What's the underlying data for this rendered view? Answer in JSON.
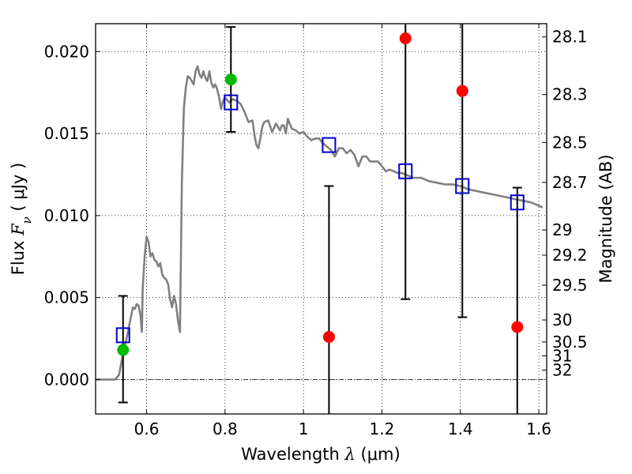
{
  "chart_data": {
    "type": "scatter",
    "title": "",
    "xlabel": {
      "prefix": "Wavelength  ",
      "symbol": "λ",
      "unit": " (μm)"
    },
    "ylabel": {
      "prefix": "Flux  ",
      "symbol": "F",
      "subscript": "ν",
      "unit": "  ( μJy )"
    },
    "y2label": "Magnitude (AB)",
    "xlim": [
      0.47,
      1.62
    ],
    "ylim": [
      -0.0021,
      0.0217
    ],
    "grid": true,
    "x_ticks": [
      {
        "v": 0.6,
        "label": "0.6"
      },
      {
        "v": 0.8,
        "label": "0.8"
      },
      {
        "v": 1.0,
        "label": "1"
      },
      {
        "v": 1.2,
        "label": "1.2"
      },
      {
        "v": 1.4,
        "label": "1.4"
      },
      {
        "v": 1.6,
        "label": "1.6"
      }
    ],
    "y_ticks": [
      {
        "v": 0.0,
        "label": "0.000"
      },
      {
        "v": 0.005,
        "label": "0.005"
      },
      {
        "v": 0.01,
        "label": "0.010"
      },
      {
        "v": 0.015,
        "label": "0.015"
      },
      {
        "v": 0.02,
        "label": "0.020"
      }
    ],
    "mag_ticks": [
      {
        "v": 28.1,
        "label": "28.1"
      },
      {
        "v": 28.3,
        "label": "28.3"
      },
      {
        "v": 28.5,
        "label": "28.5"
      },
      {
        "v": 28.7,
        "label": "28.7"
      },
      {
        "v": 29,
        "label": "29"
      },
      {
        "v": 29.2,
        "label": "29.2"
      },
      {
        "v": 29.5,
        "label": "29.5"
      },
      {
        "v": 30,
        "label": "30"
      },
      {
        "v": 30.5,
        "label": "30.5"
      },
      {
        "v": 31,
        "label": "31"
      },
      {
        "v": 32,
        "label": "32"
      }
    ],
    "zero_line": 0.0,
    "series": [
      {
        "kind": "line",
        "color": "#808080",
        "points": [
          [
            0.47,
            0.0
          ],
          [
            0.5,
            0.0
          ],
          [
            0.52,
            0.0
          ],
          [
            0.53,
            0.0003
          ],
          [
            0.54,
            0.0016
          ],
          [
            0.55,
            0.0026
          ],
          [
            0.56,
            0.0038
          ],
          [
            0.565,
            0.0044
          ],
          [
            0.57,
            0.0043
          ],
          [
            0.575,
            0.0046
          ],
          [
            0.58,
            0.0045
          ],
          [
            0.585,
            0.0038
          ],
          [
            0.588,
            0.0029
          ],
          [
            0.59,
            0.0055
          ],
          [
            0.595,
            0.0075
          ],
          [
            0.6,
            0.0087
          ],
          [
            0.605,
            0.0084
          ],
          [
            0.61,
            0.0075
          ],
          [
            0.615,
            0.0077
          ],
          [
            0.62,
            0.0073
          ],
          [
            0.625,
            0.0072
          ],
          [
            0.63,
            0.0069
          ],
          [
            0.635,
            0.0071
          ],
          [
            0.64,
            0.0064
          ],
          [
            0.645,
            0.0062
          ],
          [
            0.65,
            0.0061
          ],
          [
            0.655,
            0.0058
          ],
          [
            0.66,
            0.0049
          ],
          [
            0.665,
            0.0044
          ],
          [
            0.67,
            0.0051
          ],
          [
            0.675,
            0.0046
          ],
          [
            0.68,
            0.0036
          ],
          [
            0.685,
            0.0029
          ],
          [
            0.69,
            0.012
          ],
          [
            0.695,
            0.0165
          ],
          [
            0.7,
            0.0178
          ],
          [
            0.705,
            0.0185
          ],
          [
            0.71,
            0.0184
          ],
          [
            0.715,
            0.0182
          ],
          [
            0.72,
            0.018
          ],
          [
            0.725,
            0.0188
          ],
          [
            0.73,
            0.0191
          ],
          [
            0.735,
            0.0186
          ],
          [
            0.74,
            0.0184
          ],
          [
            0.745,
            0.0188
          ],
          [
            0.75,
            0.0184
          ],
          [
            0.755,
            0.0182
          ],
          [
            0.76,
            0.0188
          ],
          [
            0.765,
            0.0181
          ],
          [
            0.77,
            0.0178
          ],
          [
            0.775,
            0.018
          ],
          [
            0.78,
            0.0177
          ],
          [
            0.785,
            0.0172
          ],
          [
            0.79,
            0.0165
          ],
          [
            0.795,
            0.017
          ],
          [
            0.8,
            0.0172
          ],
          [
            0.81,
            0.0169
          ],
          [
            0.82,
            0.0171
          ],
          [
            0.83,
            0.017
          ],
          [
            0.84,
            0.0168
          ],
          [
            0.85,
            0.0163
          ],
          [
            0.86,
            0.0157
          ],
          [
            0.87,
            0.0158
          ],
          [
            0.875,
            0.0149
          ],
          [
            0.88,
            0.0143
          ],
          [
            0.885,
            0.0141
          ],
          [
            0.89,
            0.0147
          ],
          [
            0.895,
            0.0154
          ],
          [
            0.9,
            0.0157
          ],
          [
            0.91,
            0.0158
          ],
          [
            0.92,
            0.0151
          ],
          [
            0.93,
            0.0156
          ],
          [
            0.94,
            0.0152
          ],
          [
            0.945,
            0.0155
          ],
          [
            0.95,
            0.0155
          ],
          [
            0.955,
            0.015
          ],
          [
            0.96,
            0.0159
          ],
          [
            0.97,
            0.0153
          ],
          [
            0.98,
            0.0152
          ],
          [
            0.99,
            0.015
          ],
          [
            1.0,
            0.0151
          ],
          [
            1.01,
            0.0148
          ],
          [
            1.02,
            0.0146
          ],
          [
            1.03,
            0.0147
          ],
          [
            1.04,
            0.0147
          ],
          [
            1.05,
            0.0144
          ],
          [
            1.06,
            0.0142
          ],
          [
            1.07,
            0.014
          ],
          [
            1.08,
            0.0136
          ],
          [
            1.09,
            0.0141
          ],
          [
            1.1,
            0.0141
          ],
          [
            1.11,
            0.0138
          ],
          [
            1.12,
            0.014
          ],
          [
            1.13,
            0.0137
          ],
          [
            1.14,
            0.013
          ],
          [
            1.15,
            0.0136
          ],
          [
            1.16,
            0.0136
          ],
          [
            1.17,
            0.0133
          ],
          [
            1.18,
            0.0133
          ],
          [
            1.19,
            0.0133
          ],
          [
            1.2,
            0.013
          ],
          [
            1.21,
            0.0127
          ],
          [
            1.22,
            0.0128
          ],
          [
            1.23,
            0.0127
          ],
          [
            1.24,
            0.0126
          ],
          [
            1.25,
            0.0126
          ],
          [
            1.26,
            0.0125
          ],
          [
            1.28,
            0.0123
          ],
          [
            1.3,
            0.0123
          ],
          [
            1.32,
            0.0121
          ],
          [
            1.34,
            0.012
          ],
          [
            1.36,
            0.0119
          ],
          [
            1.38,
            0.0119
          ],
          [
            1.4,
            0.0118
          ],
          [
            1.42,
            0.0116
          ],
          [
            1.44,
            0.0115
          ],
          [
            1.46,
            0.0114
          ],
          [
            1.48,
            0.0113
          ],
          [
            1.5,
            0.0112
          ],
          [
            1.52,
            0.0111
          ],
          [
            1.54,
            0.011
          ],
          [
            1.56,
            0.0109
          ],
          [
            1.58,
            0.0108
          ],
          [
            1.6,
            0.0106
          ],
          [
            1.61,
            0.0105
          ]
        ]
      },
      {
        "kind": "errorbars",
        "color": "#000000",
        "bars": [
          {
            "x": 0.54,
            "low": -0.0014,
            "high": 0.0051,
            "cap_low": true,
            "cap_high": true
          },
          {
            "x": 0.815,
            "low": 0.0151,
            "high": 0.0215,
            "cap_low": true,
            "cap_high": true
          },
          {
            "x": 1.065,
            "low": -0.0021,
            "high": 0.0118,
            "cap_low": false,
            "cap_high": true
          },
          {
            "x": 1.26,
            "low": 0.0049,
            "high": 0.0217,
            "cap_low": true,
            "cap_high": false
          },
          {
            "x": 1.405,
            "low": 0.0038,
            "high": 0.0217,
            "cap_low": true,
            "cap_high": false
          },
          {
            "x": 1.545,
            "low": -0.0021,
            "high": 0.0117,
            "cap_low": false,
            "cap_high": true
          }
        ]
      },
      {
        "kind": "open-squares",
        "color": "#0000cc",
        "points": [
          [
            0.54,
            0.0027
          ],
          [
            0.815,
            0.0169
          ],
          [
            1.065,
            0.0143
          ],
          [
            1.26,
            0.0127
          ],
          [
            1.405,
            0.0118
          ],
          [
            1.545,
            0.0108
          ]
        ]
      },
      {
        "kind": "dots",
        "color": "#ff0000",
        "points": [
          [
            1.065,
            0.0026
          ],
          [
            1.26,
            0.0208
          ],
          [
            1.405,
            0.0176
          ],
          [
            1.545,
            0.0032
          ]
        ]
      },
      {
        "kind": "dots",
        "color": "#00bb00",
        "points": [
          [
            0.54,
            0.0018
          ],
          [
            0.815,
            0.0183
          ]
        ]
      }
    ]
  }
}
